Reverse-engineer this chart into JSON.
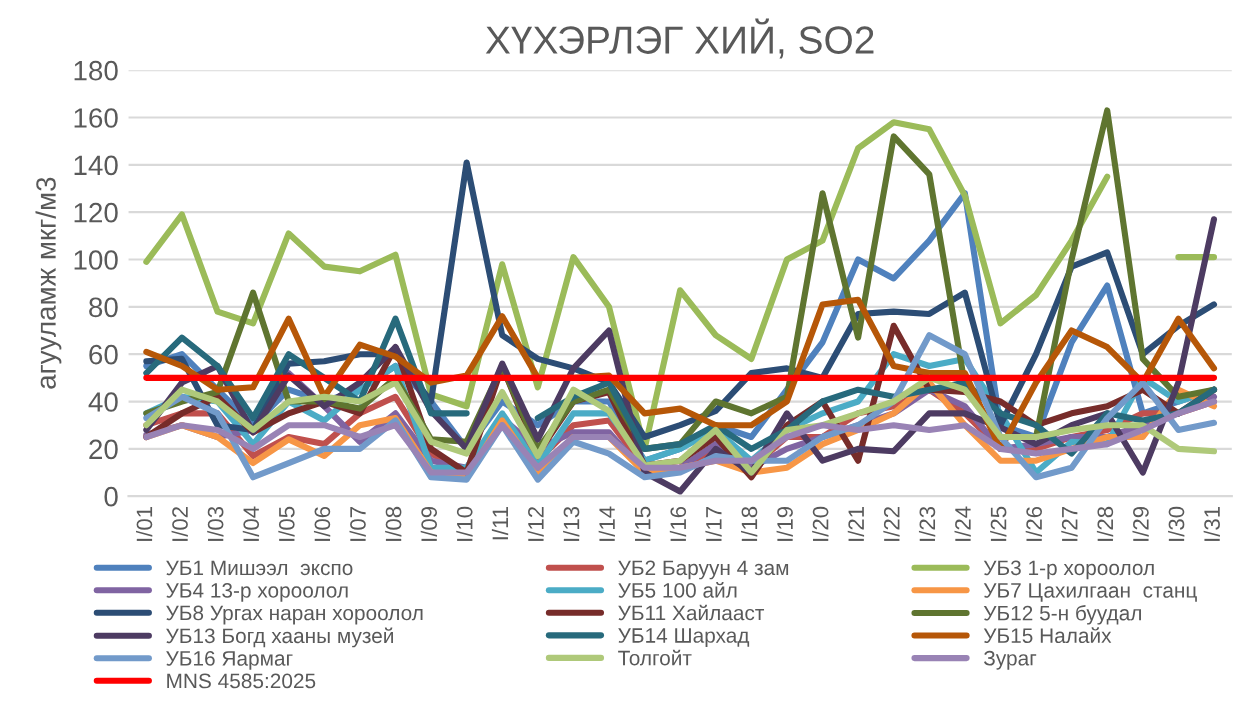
{
  "chart_data": {
    "type": "line",
    "title": "ХҮХЭРЛЭГ ХИЙ, SO2",
    "ylabel": "агууламж мкг/м3",
    "categories": [
      "I/01",
      "I/02",
      "I/03",
      "I/04",
      "I/05",
      "I/06",
      "I/07",
      "I/08",
      "I/09",
      "I/10",
      "I/11",
      "I/12",
      "I/13",
      "I/14",
      "I/15",
      "I/16",
      "I/17",
      "I/18",
      "I/19",
      "I/20",
      "I/21",
      "I/22",
      "I/23",
      "I/24",
      "I/25",
      "I/26",
      "I/27",
      "I/28",
      "I/29",
      "I/30",
      "I/31"
    ],
    "ylim": [
      0,
      180
    ],
    "yticks": [
      0,
      20,
      40,
      60,
      80,
      100,
      120,
      140,
      160,
      180
    ],
    "grid": "y",
    "legend": "bottom",
    "marker": "none",
    "line_style": "solid",
    "series": [
      {
        "name": "УБ1 Мишээл  экспо",
        "color": "#4f81bd",
        "values": [
          55,
          60,
          45,
          30,
          45,
          40,
          45,
          55,
          40,
          20,
          40,
          30,
          40,
          40,
          15,
          20,
          30,
          25,
          45,
          65,
          100,
          92,
          108,
          128,
          30,
          25,
          65,
          89,
          35,
          40,
          45
        ]
      },
      {
        "name": "УБ2 Баруун 4 зам",
        "color": "#c0504d",
        "values": [
          30,
          35,
          35,
          17,
          25,
          22,
          35,
          42,
          18,
          10,
          33,
          15,
          30,
          32,
          12,
          12,
          20,
          12,
          25,
          25,
          35,
          38,
          45,
          35,
          20,
          20,
          25,
          28,
          35,
          35,
          40
        ]
      },
      {
        "name": "УБ3 1-р хороолол",
        "color": "#9bbb59",
        "values": [
          99,
          119,
          78,
          73,
          111,
          97,
          95,
          102,
          43,
          38,
          98,
          46,
          101,
          80,
          20,
          87,
          68,
          58,
          100,
          108,
          147,
          158,
          155,
          127,
          73,
          85,
          108,
          135,
          null,
          101,
          101
        ]
      },
      {
        "name": "УБ4 13-р хороолол",
        "color": "#8064a2",
        "values": [
          26,
          30,
          25,
          28,
          52,
          38,
          23,
          35,
          15,
          12,
          33,
          20,
          27,
          27,
          10,
          12,
          22,
          12,
          20,
          25,
          30,
          35,
          45,
          38,
          20,
          22,
          25,
          25,
          30,
          35,
          42
        ]
      },
      {
        "name": "УБ5 100 айл",
        "color": "#4bacc6",
        "values": [
          35,
          42,
          40,
          22,
          40,
          32,
          45,
          55,
          12,
          12,
          35,
          13,
          35,
          35,
          15,
          20,
          28,
          15,
          28,
          35,
          40,
          60,
          55,
          58,
          35,
          10,
          23,
          22,
          50,
          40,
          45
        ]
      },
      {
        "name": "УБ7 Цахилгаан  станц",
        "color": "#f79646",
        "values": [
          25,
          30,
          25,
          14,
          24,
          17,
          30,
          33,
          10,
          8,
          32,
          10,
          25,
          25,
          10,
          12,
          15,
          10,
          12,
          22,
          28,
          35,
          48,
          30,
          15,
          15,
          20,
          25,
          25,
          45,
          38
        ]
      },
      {
        "name": "УБ8 Ургах наран хороолол",
        "color": "#2c4d75",
        "values": [
          57,
          58,
          30,
          28,
          56,
          57,
          60,
          60,
          40,
          141,
          68,
          58,
          54,
          48,
          25,
          30,
          36,
          52,
          54,
          50,
          77,
          78,
          77,
          86,
          30,
          60,
          97,
          103,
          60,
          72,
          81
        ]
      },
      {
        "name": "УБ11 Хайлааст",
        "color": "#772c2a",
        "values": [
          25,
          35,
          42,
          27,
          35,
          40,
          35,
          63,
          20,
          10,
          55,
          18,
          40,
          44,
          13,
          15,
          25,
          8,
          30,
          40,
          15,
          72,
          45,
          44,
          40,
          30,
          35,
          38,
          45,
          35,
          45
        ]
      },
      {
        "name": "УБ12 5-н буудал",
        "color": "#5f7530",
        "values": [
          35,
          40,
          44,
          86,
          40,
          40,
          37,
          50,
          24,
          23,
          55,
          20,
          40,
          45,
          20,
          22,
          40,
          35,
          42,
          128,
          67,
          152,
          136,
          47,
          25,
          25,
          100,
          163,
          58,
          42,
          45
        ]
      },
      {
        "name": "УБ13 Богд хааны музей",
        "color": "#4d3b62",
        "values": [
          28,
          48,
          55,
          27,
          51,
          38,
          48,
          63,
          36,
          20,
          56,
          24,
          54,
          70,
          10,
          2,
          20,
          10,
          35,
          15,
          20,
          19,
          35,
          35,
          29,
          22,
          30,
          35,
          10,
          48,
          117
        ]
      },
      {
        "name": "УБ14 Шархад",
        "color": "#276a7c",
        "values": [
          52,
          67,
          55,
          33,
          60,
          50,
          40,
          75,
          35,
          35,
          null,
          33,
          42,
          48,
          20,
          22,
          30,
          20,
          28,
          40,
          45,
          42,
          45,
          48,
          35,
          30,
          18,
          35,
          32,
          35,
          45
        ]
      },
      {
        "name": "УБ15 Налайх",
        "color": "#b65708",
        "values": [
          61,
          55,
          45,
          46,
          75,
          42,
          64,
          59,
          48,
          51,
          76,
          50,
          50,
          51,
          35,
          37,
          30,
          30,
          40,
          81,
          83,
          55,
          52,
          52,
          20,
          48,
          70,
          63,
          48,
          75,
          54
        ]
      },
      {
        "name": "УБ16 Яармаг",
        "color": "#729aca",
        "values": [
          33,
          42,
          35,
          8,
          14,
          20,
          20,
          32,
          8,
          7,
          30,
          7,
          23,
          18,
          8,
          10,
          17,
          15,
          15,
          25,
          30,
          40,
          68,
          60,
          25,
          8,
          12,
          33,
          48,
          28,
          31
        ]
      },
      {
        "name": "Толгойт",
        "color": "#afc97a",
        "values": [
          30,
          45,
          40,
          28,
          40,
          42,
          40,
          48,
          23,
          18,
          44,
          17,
          45,
          36,
          13,
          15,
          28,
          10,
          28,
          30,
          35,
          40,
          50,
          45,
          25,
          25,
          28,
          30,
          30,
          20,
          19
        ]
      },
      {
        "name": "Зураг",
        "color": "#9983b5",
        "values": [
          25,
          30,
          28,
          20,
          30,
          30,
          25,
          30,
          10,
          10,
          30,
          12,
          25,
          25,
          12,
          12,
          15,
          15,
          25,
          30,
          28,
          30,
          28,
          30,
          20,
          18,
          20,
          22,
          28,
          35,
          40
        ]
      },
      {
        "name": "MNS 4585:2025",
        "color": "#ff0000",
        "values": [
          50,
          50,
          50,
          50,
          50,
          50,
          50,
          50,
          50,
          50,
          50,
          50,
          50,
          50,
          50,
          50,
          50,
          50,
          50,
          50,
          50,
          50,
          50,
          50,
          50,
          50,
          50,
          50,
          50,
          50,
          50
        ]
      }
    ]
  }
}
